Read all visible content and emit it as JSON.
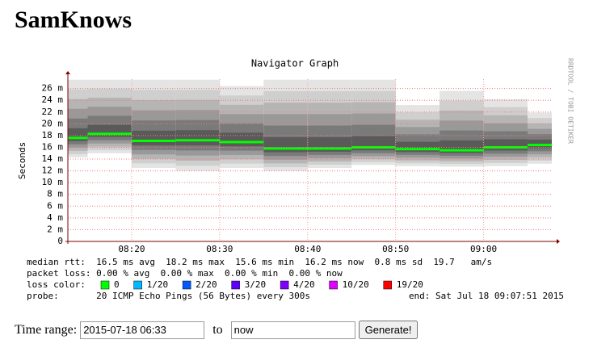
{
  "header": {
    "title": "SamKnows"
  },
  "chart_data": {
    "type": "smoke",
    "title": "Navigator Graph",
    "y_label": "Seconds",
    "side_label": "RRDTOOL / TOBI OETIKER",
    "x": [
      490,
      495,
      500,
      505,
      510,
      515,
      520,
      525,
      530,
      535,
      540,
      545
    ],
    "xlim": [
      492.75,
      547.75
    ],
    "xticks": [
      {
        "value": 500,
        "label": "08:20"
      },
      {
        "value": 510,
        "label": "08:30"
      },
      {
        "value": 520,
        "label": "08:40"
      },
      {
        "value": 530,
        "label": "08:50"
      },
      {
        "value": 540,
        "label": "09:00"
      }
    ],
    "ylim": [
      0,
      27.6
    ],
    "yticks": [
      0,
      {
        "value": 2,
        "label": "2 m"
      },
      {
        "value": 4,
        "label": "4 m"
      },
      {
        "value": 6,
        "label": "6 m"
      },
      {
        "value": 8,
        "label": "8 m"
      },
      {
        "value": 10,
        "label": "10 m"
      },
      {
        "value": 12,
        "label": "12 m"
      },
      {
        "value": 14,
        "label": "14 m"
      },
      {
        "value": 16,
        "label": "16 m"
      },
      {
        "value": 18,
        "label": "18 m"
      },
      {
        "value": 20,
        "label": "20 m"
      },
      {
        "value": 22,
        "label": "22 m"
      },
      {
        "value": 24,
        "label": "24 m"
      },
      {
        "value": 26,
        "label": "26 m"
      }
    ],
    "median": {
      "color": "#00ff00",
      "values": [
        17.6,
        18.3,
        17.1,
        17.2,
        16.9,
        15.8,
        15.8,
        16.0,
        15.7,
        15.5,
        16.0,
        16.4
      ]
    },
    "range_low": [
      14.3,
      15.0,
      12.5,
      12.0,
      12.5,
      12.0,
      12.5,
      13.0,
      12.8,
      12.7,
      12.8,
      13.2
    ],
    "range_high": [
      27.5,
      27.5,
      27.5,
      27.5,
      26.4,
      27.5,
      27.5,
      27.5,
      23.2,
      25.6,
      24.2,
      21.9
    ],
    "grid": true
  },
  "legend": {
    "median_rtt": "median rtt:  16.5 ms avg  18.2 ms max  15.6 ms min  16.2 ms now  0.8 ms sd  19.7   am/s",
    "packet_loss": "packet loss: 0.00 % avg  0.00 % max  0.00 % min  0.00 % now",
    "loss_color_label": "loss color:",
    "loss_colors": [
      {
        "color": "#00ff00",
        "label": "0"
      },
      {
        "color": "#00b8ff",
        "label": "1/20"
      },
      {
        "color": "#0059ff",
        "label": "2/20"
      },
      {
        "color": "#5e00ff",
        "label": "3/20"
      },
      {
        "color": "#7e00ff",
        "label": "4/20"
      },
      {
        "color": "#dd00ff",
        "label": "10/20"
      },
      {
        "color": "#ff0000",
        "label": "19/20"
      }
    ],
    "probe": "probe:       20 ICMP Echo Pings (56 Bytes) every 300s",
    "end": "end: Sat Jul 18 09:07:51 2015"
  },
  "form": {
    "label": "Time range:",
    "from": "2015-07-18 06:33",
    "to_label": "to",
    "to": "now",
    "button": "Generate!"
  }
}
